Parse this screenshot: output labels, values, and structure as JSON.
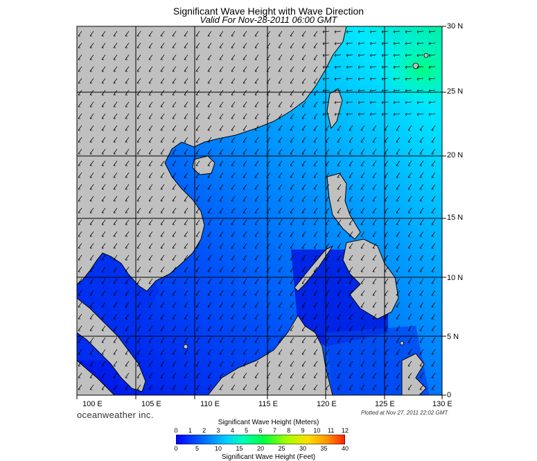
{
  "header": {
    "title": "Significant Wave Height with Wave Direction",
    "subtitle": "Valid For Nov-28-2011 06:00 GMT"
  },
  "map": {
    "lat_labels": [
      "30 N",
      "25 N",
      "20 N",
      "15 N",
      "10 N",
      "5 N",
      "0"
    ],
    "lon_labels": [
      "100 E",
      "105 E",
      "110 E",
      "115 E",
      "120 E",
      "125 E",
      "130 E"
    ],
    "land_color": "#c0c0c0",
    "sea_colors": {
      "low": "#0000e0",
      "mid": "#0066ff",
      "high": "#00e0ff",
      "peak": "#00ff80"
    },
    "wave_direction": "toward south-west"
  },
  "footer": {
    "brand": "oceanweather inc.",
    "plotted": "Plotted at Nov 27, 2011 22:02 GMT"
  },
  "colorbar": {
    "title_top": "Significant Wave Height (Meters)",
    "title_bottom": "Significant Wave Height (Feet)",
    "meters": [
      "0",
      "1",
      "2",
      "3",
      "4",
      "5",
      "6",
      "7",
      "8",
      "9",
      "10",
      "11",
      "12"
    ],
    "feet": [
      "0",
      "5",
      "10",
      "15",
      "20",
      "25",
      "30",
      "35",
      "40"
    ],
    "colors": [
      "#0000ff",
      "#0040ff",
      "#0080ff",
      "#00c0ff",
      "#00ffff",
      "#00ffa0",
      "#00ff40",
      "#60ff00",
      "#c0ff00",
      "#ffe000",
      "#ffa000",
      "#ff6000",
      "#ff2000"
    ]
  }
}
